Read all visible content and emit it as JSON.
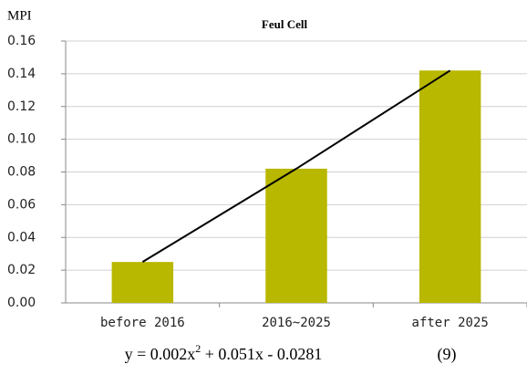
{
  "chart_data": {
    "type": "bar",
    "title": "Feul Cell",
    "y_label": "MPI",
    "categories": [
      "before 2016",
      "2016~2025",
      "after 2025"
    ],
    "values": [
      0.025,
      0.082,
      0.142
    ],
    "color": "#b8b800",
    "trendline": {
      "color": "#000000",
      "values": [
        0.025,
        0.082,
        0.142
      ]
    },
    "ylim": [
      0,
      0.16
    ],
    "yticks": [
      {
        "value": 0,
        "label": "0.00"
      },
      0.02,
      0.04,
      0.06,
      0.08,
      {
        "value": 0.1,
        "label": "0.10"
      },
      0.12,
      0.14,
      0.16
    ],
    "grid": true,
    "equation": [
      "y = 0.002x",
      "2",
      " + 0.051x - 0.0281"
    ],
    "equation_number": "(9)"
  }
}
